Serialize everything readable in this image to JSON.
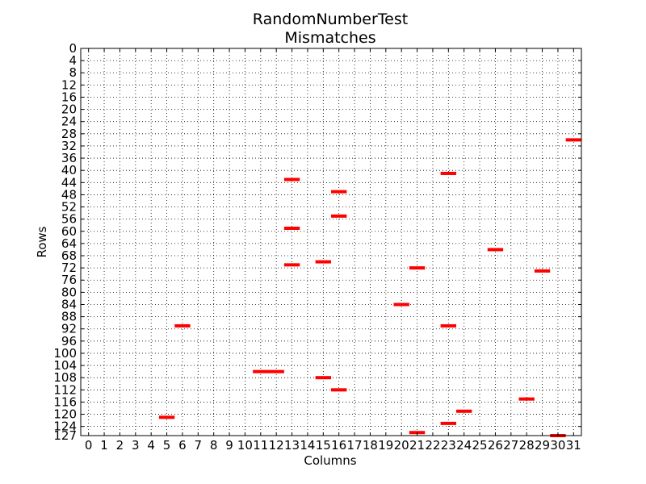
{
  "chart_data": {
    "type": "heatmap",
    "title": "RandomNumberTest",
    "subtitle": "Mismatches",
    "xlabel": "Columns",
    "ylabel": "Rows",
    "xlim": [
      0,
      31
    ],
    "ylim": [
      0,
      127
    ],
    "x_ticks": [
      "0",
      "1",
      "2",
      "3",
      "4",
      "5",
      "6",
      "7",
      "8",
      "9",
      "10",
      "11",
      "12",
      "13",
      "14",
      "15",
      "16",
      "17",
      "18",
      "19",
      "20",
      "21",
      "22",
      "23",
      "24",
      "25",
      "26",
      "27",
      "28",
      "29",
      "30",
      "31"
    ],
    "y_ticks": [
      "0",
      "4",
      "8",
      "12",
      "16",
      "20",
      "24",
      "28",
      "32",
      "36",
      "40",
      "44",
      "48",
      "52",
      "56",
      "60",
      "64",
      "68",
      "72",
      "76",
      "80",
      "84",
      "88",
      "92",
      "96",
      "100",
      "104",
      "108",
      "112",
      "116",
      "120",
      "124",
      "127"
    ],
    "grid": true,
    "mismatch_color": "#ff0000",
    "points": [
      {
        "x": 31,
        "row": 30
      },
      {
        "x": 23,
        "row": 41
      },
      {
        "x": 13,
        "row": 43
      },
      {
        "x": 16,
        "row": 47
      },
      {
        "x": 16,
        "row": 55
      },
      {
        "x": 13,
        "row": 59
      },
      {
        "x": 26,
        "row": 66
      },
      {
        "x": 15,
        "row": 70
      },
      {
        "x": 13,
        "row": 71
      },
      {
        "x": 21,
        "row": 72
      },
      {
        "x": 29,
        "row": 73
      },
      {
        "x": 20,
        "row": 84
      },
      {
        "x": 6,
        "row": 91
      },
      {
        "x": 23,
        "row": 91
      },
      {
        "x": 11,
        "row": 106
      },
      {
        "x": 12,
        "row": 106
      },
      {
        "x": 15,
        "row": 108
      },
      {
        "x": 16,
        "row": 112
      },
      {
        "x": 28,
        "row": 115
      },
      {
        "x": 24,
        "row": 119
      },
      {
        "x": 5,
        "row": 121
      },
      {
        "x": 23,
        "row": 123
      },
      {
        "x": 21,
        "row": 126
      },
      {
        "x": 30,
        "row": 127
      }
    ]
  }
}
